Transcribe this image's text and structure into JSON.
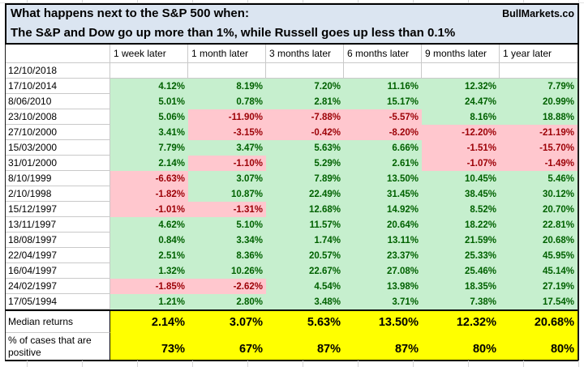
{
  "header": {
    "title": "What happens next to the S&P 500 when:",
    "brand": "BullMarkets.co",
    "subtitle": "The S&P and Dow go up more than 1%, while Russell goes up less than 0.1%"
  },
  "table": {
    "corner_label": "",
    "column_headers": [
      "1 week later",
      "1 month later",
      "3 months later",
      "6 months later",
      "9 months later",
      "1 year later"
    ],
    "rows": [
      {
        "date": "12/10/2018",
        "values": [
          "",
          "",
          "",
          "",
          "",
          ""
        ]
      },
      {
        "date": "17/10/2014",
        "values": [
          "4.12%",
          "8.19%",
          "7.20%",
          "11.16%",
          "12.32%",
          "7.79%"
        ]
      },
      {
        "date": "8/06/2010",
        "values": [
          "5.01%",
          "0.78%",
          "2.81%",
          "15.17%",
          "24.47%",
          "20.99%"
        ]
      },
      {
        "date": "23/10/2008",
        "values": [
          "5.06%",
          "-11.90%",
          "-7.88%",
          "-5.57%",
          "8.16%",
          "18.88%"
        ]
      },
      {
        "date": "27/10/2000",
        "values": [
          "3.41%",
          "-3.15%",
          "-0.42%",
          "-8.20%",
          "-12.20%",
          "-21.19%"
        ]
      },
      {
        "date": "15/03/2000",
        "values": [
          "7.79%",
          "3.47%",
          "5.63%",
          "6.66%",
          "-1.51%",
          "-15.70%"
        ]
      },
      {
        "date": "31/01/2000",
        "values": [
          "2.14%",
          "-1.10%",
          "5.29%",
          "2.61%",
          "-1.07%",
          "-1.49%"
        ]
      },
      {
        "date": "8/10/1999",
        "values": [
          "-6.63%",
          "3.07%",
          "7.89%",
          "13.50%",
          "10.45%",
          "5.46%"
        ]
      },
      {
        "date": "2/10/1998",
        "values": [
          "-1.82%",
          "10.87%",
          "22.49%",
          "31.45%",
          "38.45%",
          "30.12%"
        ]
      },
      {
        "date": "15/12/1997",
        "values": [
          "-1.01%",
          "-1.31%",
          "12.68%",
          "14.92%",
          "8.52%",
          "20.70%"
        ]
      },
      {
        "date": "13/11/1997",
        "values": [
          "4.62%",
          "5.10%",
          "11.57%",
          "20.64%",
          "18.22%",
          "22.81%"
        ]
      },
      {
        "date": "18/08/1997",
        "values": [
          "0.84%",
          "3.34%",
          "1.74%",
          "13.11%",
          "21.59%",
          "20.68%"
        ]
      },
      {
        "date": "22/04/1997",
        "values": [
          "2.51%",
          "8.36%",
          "20.57%",
          "23.37%",
          "25.33%",
          "45.95%"
        ]
      },
      {
        "date": "16/04/1997",
        "values": [
          "1.32%",
          "10.26%",
          "22.67%",
          "27.08%",
          "25.46%",
          "45.14%"
        ]
      },
      {
        "date": "24/02/1997",
        "values": [
          "-1.85%",
          "-2.62%",
          "4.54%",
          "13.98%",
          "18.35%",
          "27.19%"
        ]
      },
      {
        "date": "17/05/1994",
        "values": [
          "1.21%",
          "2.80%",
          "3.48%",
          "3.71%",
          "7.38%",
          "17.54%"
        ]
      }
    ],
    "summary": [
      {
        "label": "Median returns",
        "values": [
          "2.14%",
          "3.07%",
          "5.63%",
          "13.50%",
          "12.32%",
          "20.68%"
        ]
      },
      {
        "label": "% of cases that are positive",
        "values": [
          "73%",
          "67%",
          "87%",
          "87%",
          "80%",
          "80%"
        ]
      }
    ]
  },
  "colors": {
    "title_bg": "#dbe5f1",
    "positive_bg": "#c6efce",
    "positive_text": "#006100",
    "negative_bg": "#ffc7ce",
    "negative_text": "#9c0006",
    "summary_bg": "#ffff00",
    "gridline": "#c9c9c9"
  }
}
